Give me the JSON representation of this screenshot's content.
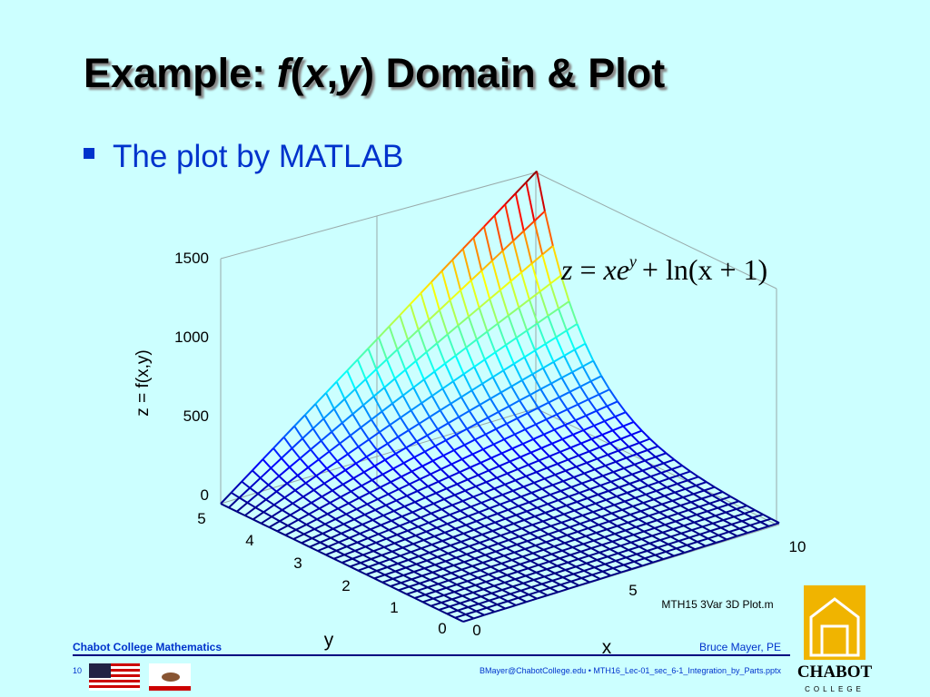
{
  "title": {
    "parts": [
      "Example: ",
      "f",
      "(",
      "x",
      ",",
      "y",
      ")",
      " Domain & Plot"
    ]
  },
  "bullet": "The plot by MATLAB",
  "equation": {
    "lhs": "z",
    "eq": "=",
    "term": "xe",
    "sup": "y",
    "rest": "+ ln(x + 1)"
  },
  "plot": {
    "z_label": "z = f(x,y)",
    "x_label": "x",
    "y_label": "y",
    "z_ticks": [
      "0",
      "500",
      "1000",
      "1500"
    ],
    "x_ticks": [
      "0",
      "5",
      "10"
    ],
    "y_ticks": [
      "0",
      "1",
      "2",
      "3",
      "4",
      "5"
    ],
    "file_label": "MTH15 3Var 3D Plot.m"
  },
  "footer": {
    "left": "Chabot College Mathematics",
    "right": "Bruce Mayer, PE",
    "page": "10",
    "center": "BMayer@ChabotCollege.edu  •  MTH16_Lec-01_sec_6-1_Integration_by_Parts.pptx",
    "logo_name": "CHABOT",
    "logo_sub": "COLLEGE"
  }
}
